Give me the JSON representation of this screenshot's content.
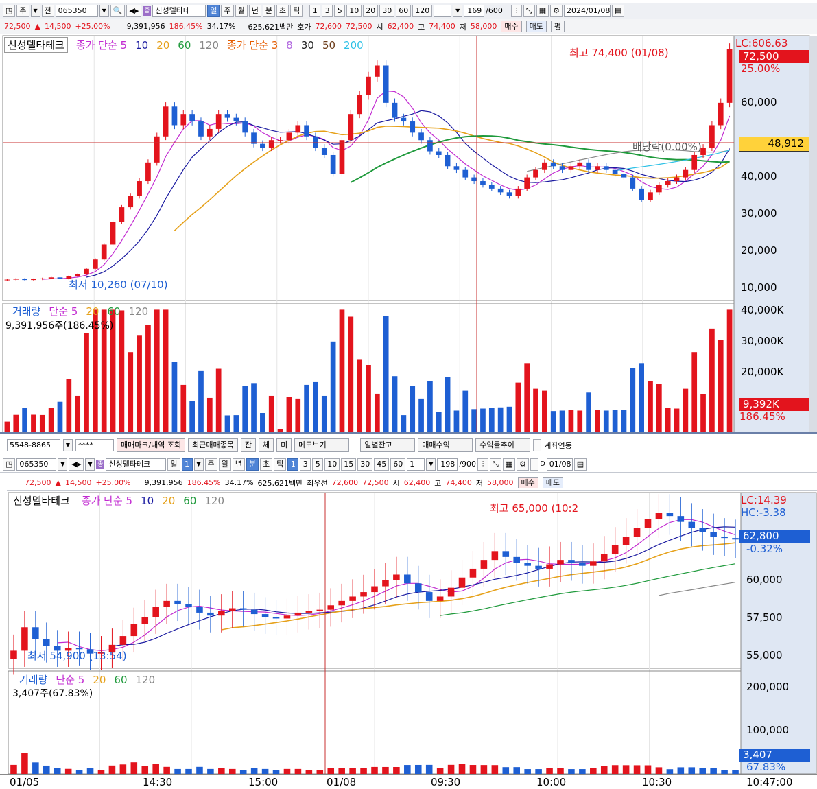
{
  "colors": {
    "up": "#e3141d",
    "down": "#1e5fd3",
    "ma5": "#c22bd1",
    "ma10": "#1a1aa0",
    "ma20": "#e6a11a",
    "ma60": "#1f9a3c",
    "ma120": "#888888",
    "ma200": "#2ec1e6",
    "axis_bg": "#dfe7f3"
  },
  "top": {
    "toolbar": {
      "type": "주",
      "prev": "전",
      "code": "065350",
      "name": "신성델타테",
      "periods": [
        "일",
        "주",
        "월",
        "년",
        "분",
        "초",
        "틱"
      ],
      "period_selected": "일",
      "nums": [
        "1",
        "3",
        "5",
        "10",
        "20",
        "30",
        "60",
        "120"
      ],
      "count": "169",
      "count_total": "/600",
      "date": "2024/01/08"
    },
    "quote": {
      "price": "72,500",
      "arrow": "▲",
      "change": "14,500",
      "pct": "+25.00%",
      "volume": "9,391,956",
      "vol_pct": "186.45%",
      "turnover": "34.17%",
      "amount": "625,621백만",
      "hoga_label": "호가",
      "hoga1": "72,600",
      "hoga2": "72,500",
      "open_label": "시",
      "open": "62,400",
      "high_label": "고",
      "high": "74,400",
      "low_label": "저",
      "low": "58,000",
      "buy": "매수",
      "sell": "매도",
      "eval": "평"
    },
    "legend": {
      "title": "신성델타테크",
      "ma_a": "종가 단순 5",
      "ma_a2": "10",
      "ma_a3": "20",
      "ma_a4": "60",
      "ma_a5": "120",
      "ma_b": "종가 단순 3",
      "ma_b2": "8",
      "ma_b3": "30",
      "ma_b4": "50",
      "ma_b5": "200"
    },
    "annot": {
      "high": "최고 74,400 (01/08)",
      "low": "최저 10,260 (07/10)",
      "div": "배당락(0.00%)"
    },
    "axis": {
      "lc": "LC:606.63",
      "price": "72,500",
      "pct": "25.00%",
      "cross": "48,912",
      "ticks": [
        "60,000",
        "40,000",
        "30,000",
        "20,000",
        "10,000"
      ]
    },
    "vol": {
      "legend": "거래량",
      "ma": "단순 5",
      "ma2": "20",
      "ma3": "60",
      "ma4": "120",
      "value": "9,391,956주(186.45%)",
      "ticks": [
        "40,000K",
        "30,000K",
        "20,000K"
      ],
      "last": "9,392K",
      "last_pct": "186.45%"
    }
  },
  "bottom": {
    "row1": {
      "acct": "5548-8865",
      "pw": "****",
      "btn1": "매매마크/내역 조회",
      "btn2": "최근매매종목",
      "btn3": "잔",
      "btn4": "체",
      "btn5": "미",
      "btn6": "메모보기",
      "btn7": "일별잔고",
      "btn8": "매매수익",
      "btn9": "수익률추이",
      "chk": "계좌연동"
    },
    "toolbar": {
      "code": "065350",
      "name": "신성델타테크",
      "day": "일",
      "day_n": "1",
      "periods": [
        "주",
        "월",
        "년",
        "분",
        "초",
        "틱"
      ],
      "period_selected": "분",
      "nums": [
        "1",
        "3",
        "5",
        "10",
        "15",
        "30",
        "45",
        "60"
      ],
      "num_selected": "1",
      "interval": "1",
      "count": "198",
      "count_total": "/900",
      "date": "01/08"
    },
    "quote": {
      "price": "72,500",
      "arrow": "▲",
      "change": "14,500",
      "pct": "+25.00%",
      "volume": "9,391,956",
      "vol_pct": "186.45%",
      "turnover": "34.17%",
      "amount": "625,621백만",
      "hoga_label": "최우선",
      "hoga1": "72,600",
      "hoga2": "72,500",
      "open_label": "시",
      "open": "62,400",
      "high_label": "고",
      "high": "74,400",
      "low_label": "저",
      "low": "58,000",
      "buy": "매수",
      "sell": "매도"
    },
    "legend": {
      "title": "신성델타테크",
      "ma": "종가 단순 5",
      "ma2": "10",
      "ma3": "20",
      "ma4": "60",
      "ma5": "120"
    },
    "annot": {
      "high": "최고 65,000 (10:2",
      "low": "최저 54,900 (13:54)"
    },
    "axis": {
      "lc": "LC:14.39",
      "hc": "HC:-3.38",
      "price": "62,800",
      "pct": "-0.32%",
      "ticks": [
        "60,000",
        "57,500",
        "55,000"
      ]
    },
    "vol": {
      "legend": "거래량",
      "ma": "단순 5",
      "ma2": "20",
      "ma3": "60",
      "ma4": "120",
      "value": "3,407주(67.83%)",
      "ticks": [
        "200,000",
        "100,000"
      ],
      "last": "3,407",
      "last_pct": "67.83%"
    },
    "time": {
      "labels": [
        "01/05",
        "14:30",
        "15:00",
        "01/08",
        "09:30",
        "10:00",
        "10:30"
      ],
      "current": "10:47:00"
    }
  },
  "chart_data": [
    {
      "type": "candlestick",
      "title": "신성델타테크 일봉",
      "ylim": [
        5000,
        76000
      ],
      "series_close": [
        10600,
        10800,
        10500,
        10700,
        10900,
        11200,
        10800,
        11500,
        12000,
        13500,
        16000,
        20000,
        26000,
        30000,
        33000,
        37000,
        42000,
        49000,
        57000,
        52000,
        55000,
        53000,
        49000,
        51000,
        55000,
        54000,
        53000,
        50000,
        47000,
        46000,
        48000,
        48000,
        50000,
        52000,
        49000,
        46000,
        44000,
        39000,
        48000,
        55000,
        60000,
        65000,
        68000,
        58000,
        54000,
        53000,
        50000,
        48000,
        45000,
        44000,
        41000,
        40000,
        38000,
        37000,
        36000,
        35000,
        34000,
        33000,
        35000,
        38000,
        40000,
        42000,
        41000,
        40000,
        41000,
        42000,
        40000,
        41000,
        40000,
        39000,
        38000,
        35000,
        32000,
        34000,
        36000,
        37000,
        38000,
        40000,
        44000,
        46000,
        52000,
        58000,
        72500
      ],
      "ma": [
        {
          "name": "5",
          "color": "ma5"
        },
        {
          "name": "10",
          "color": "ma10"
        },
        {
          "name": "20",
          "color": "ma20"
        },
        {
          "name": "60",
          "color": "ma60"
        },
        {
          "name": "120",
          "color": "ma120"
        },
        {
          "name": "200",
          "color": "ma200"
        }
      ]
    },
    {
      "type": "candlestick",
      "title": "신성델타테크 분봉",
      "ylim": [
        54000,
        66000
      ],
      "series_close": [
        55200,
        56800,
        56000,
        55500,
        55200,
        55400,
        55300,
        55000,
        55100,
        55600,
        56200,
        57000,
        57500,
        58200,
        58600,
        58400,
        58200,
        57800,
        57600,
        57900,
        58100,
        58000,
        57700,
        57500,
        57400,
        57600,
        57800,
        57900,
        58000,
        58300,
        58600,
        58900,
        59200,
        59600,
        60000,
        60400,
        59800,
        59200,
        58600,
        58900,
        59500,
        60200,
        60800,
        61400,
        62000,
        61600,
        61200,
        61000,
        60800,
        61100,
        61400,
        61200,
        61000,
        61300,
        61800,
        62400,
        63000,
        63600,
        64200,
        64600,
        64400,
        64000,
        63600,
        63300,
        63000,
        62900,
        62800
      ],
      "ts": [
        "01/05",
        "14:30",
        "15:00",
        "01/08",
        "09:30",
        "10:00",
        "10:30"
      ]
    }
  ]
}
